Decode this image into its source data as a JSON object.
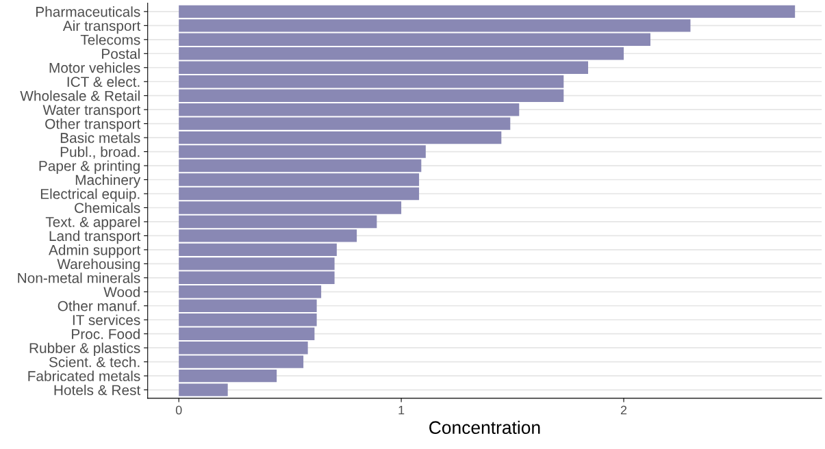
{
  "chart_data": {
    "type": "bar",
    "orientation": "horizontal",
    "xlabel": "Concentration",
    "categories": [
      "Pharmaceuticals",
      "Air transport",
      "Telecoms",
      "Postal",
      "Motor vehicles",
      "ICT & elect.",
      "Wholesale & Retail",
      "Water transport",
      "Other transport",
      "Basic metals",
      "Publ., broad.",
      "Paper & printing",
      "Machinery",
      "Electrical equip.",
      "Chemicals",
      "Text. & apparel",
      "Land transport",
      "Admin support",
      "Warehousing",
      "Non-metal minerals",
      "Wood",
      "Other manuf.",
      "IT services",
      "Proc. Food",
      "Rubber & plastics",
      "Scient. & tech.",
      "Fabricated metals",
      "Hotels & Rest"
    ],
    "values": [
      2.77,
      2.3,
      2.12,
      2.0,
      1.84,
      1.73,
      1.73,
      1.53,
      1.49,
      1.45,
      1.11,
      1.09,
      1.08,
      1.08,
      1.0,
      0.89,
      0.8,
      0.71,
      0.7,
      0.7,
      0.64,
      0.62,
      0.62,
      0.61,
      0.58,
      0.56,
      0.44,
      0.22
    ],
    "color": "#8988b4",
    "xlim": [
      -0.14,
      2.89
    ],
    "xticks": [
      0,
      1,
      2
    ],
    "grid": "y"
  }
}
